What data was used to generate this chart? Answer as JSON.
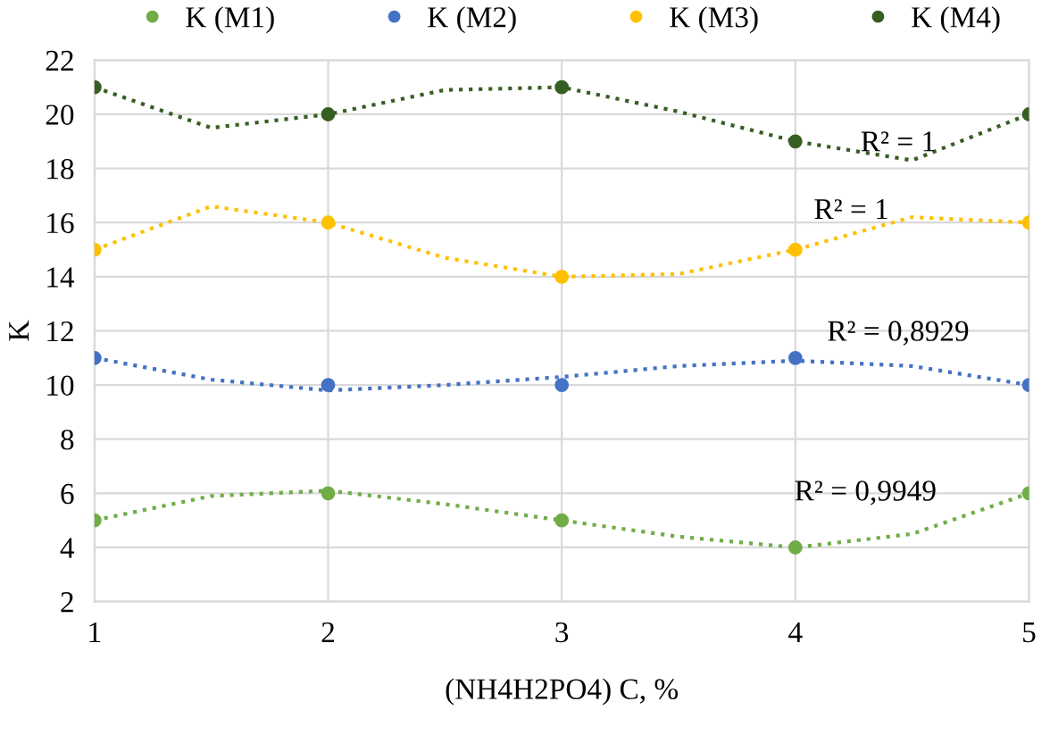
{
  "chart_data": {
    "type": "scatter",
    "xlabel": "(NH4H2PO4) C, %",
    "ylabel": "K",
    "x": [
      1,
      2,
      3,
      4,
      5
    ],
    "xlim": [
      1,
      5
    ],
    "xticks": [
      1,
      2,
      3,
      4,
      5
    ],
    "ylim": [
      2,
      22
    ],
    "yticks": [
      2,
      4,
      6,
      8,
      10,
      12,
      14,
      16,
      18,
      20,
      22
    ],
    "grid": true,
    "legend": "top",
    "marker": "circle",
    "series": [
      {
        "name": "K (M1)",
        "color": "#70ad47",
        "values": [
          5,
          6,
          5,
          4,
          6
        ]
      },
      {
        "name": "K (M2)",
        "color": "#4472c4",
        "values": [
          11,
          10,
          10,
          11,
          10
        ]
      },
      {
        "name": "K (M3)",
        "color": "#ffc000",
        "values": [
          15,
          16,
          14,
          15,
          16
        ]
      },
      {
        "name": "K (M4)",
        "color": "#375e23",
        "values": [
          21,
          20,
          21,
          19,
          20
        ]
      },
      {
        "type": "line",
        "line_style": "dotted",
        "marker": "none",
        "color": "#70ad47",
        "x": [
          1,
          1.5,
          2,
          2.5,
          3,
          3.5,
          4,
          4.5,
          5
        ],
        "values": [
          5,
          5.9,
          6.1,
          5.6,
          5,
          4.4,
          4.0,
          4.5,
          6
        ]
      },
      {
        "type": "line",
        "line_style": "dotted",
        "marker": "none",
        "color": "#4472c4",
        "x": [
          1,
          1.5,
          2,
          2.5,
          3,
          3.5,
          4,
          4.5,
          5
        ],
        "values": [
          11,
          10.2,
          9.8,
          10.0,
          10.3,
          10.7,
          10.9,
          10.7,
          10
        ]
      },
      {
        "type": "line",
        "line_style": "dotted",
        "marker": "none",
        "color": "#ffc000",
        "x": [
          1,
          1.5,
          2,
          2.5,
          3,
          3.5,
          4,
          4.5,
          5
        ],
        "values": [
          15,
          16.6,
          16,
          14.7,
          14,
          14.1,
          15,
          16.2,
          16
        ]
      },
      {
        "type": "line",
        "line_style": "dotted",
        "marker": "none",
        "color": "#375e23",
        "x": [
          1,
          1.5,
          2,
          2.5,
          3,
          3.5,
          4,
          4.5,
          5
        ],
        "values": [
          21,
          19.5,
          20,
          20.9,
          21,
          20.1,
          19,
          18.3,
          20
        ]
      }
    ],
    "annotations": [
      "R² = 1",
      "R² = 1",
      "R² = 0,8929",
      "R² = 0,9949"
    ]
  }
}
